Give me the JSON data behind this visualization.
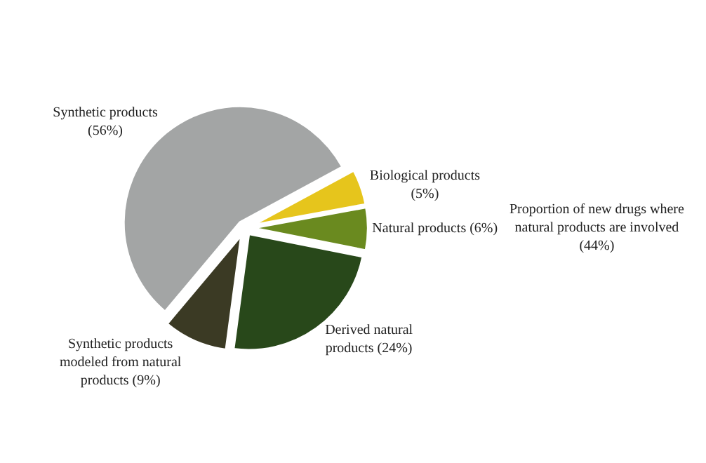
{
  "chart_data": {
    "type": "pie",
    "categories": [
      "Synthetic products",
      "Biological products",
      "Natural products",
      "Derived natural products",
      "Synthetic products modeled from natural products"
    ],
    "values": [
      56,
      5,
      6,
      24,
      9
    ],
    "colors": [
      "#a3a5a5",
      "#e6c51c",
      "#6a8a1f",
      "#28481a",
      "#3b3a24"
    ],
    "value_labels": [
      "(56%)",
      "(5%)",
      "(6%)",
      "(24%)",
      "(9%)"
    ],
    "annotations": [
      "Proportion of new drugs where natural products are involved (44%)"
    ]
  }
}
